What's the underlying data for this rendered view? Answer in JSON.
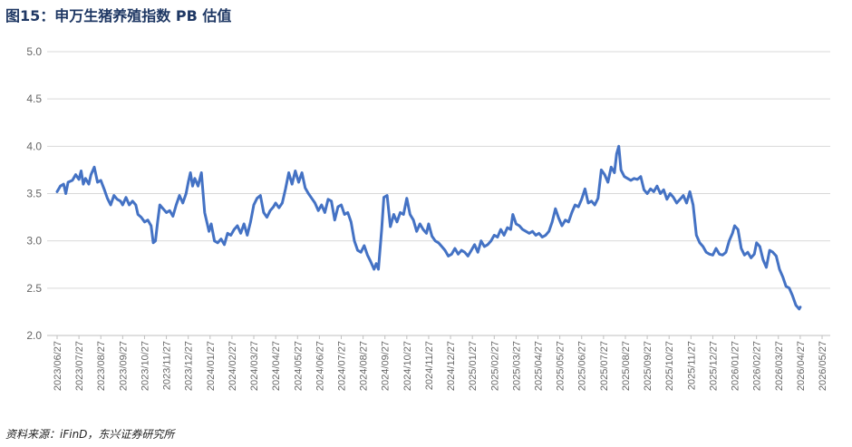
{
  "header": {
    "title": "图15：申万生猪养殖指数 PB 估值"
  },
  "footer": {
    "source": "资料来源：iFinD，东兴证券研究所"
  },
  "colors": {
    "line": "#4472c4",
    "grid": "#d9d9d9",
    "title": "#1f3864"
  },
  "chart_data": {
    "type": "line",
    "title": "图15：申万生猪养殖指数 PB 估值",
    "xlabel": "",
    "ylabel": "",
    "ylim": [
      2.0,
      5.0
    ],
    "yticks": [
      "5.0",
      "4.5",
      "4.0",
      "3.5",
      "3.0",
      "2.5",
      "2.0"
    ],
    "grid": true,
    "legend": "none",
    "categories": [
      "2023/06/27",
      "2023/07/27",
      "2023/08/27",
      "2023/09/27",
      "2023/10/27",
      "2023/11/27",
      "2023/12/27",
      "2024/01/27",
      "2024/02/27",
      "2024/03/27",
      "2024/04/27",
      "2024/05/27",
      "2024/06/27",
      "2024/07/27",
      "2024/08/27",
      "2024/09/27",
      "2024/10/27",
      "2024/11/27",
      "2024/12/27",
      "2025/01/27",
      "2025/02/27",
      "2025/03/27",
      "2025/04/27",
      "2025/05/27",
      "2025/06/27",
      "2025/07/27",
      "2025/08/27",
      "2025/09/27",
      "2025/10/27",
      "2025/11/27",
      "2025/12/27",
      "2026/01/27",
      "2026/02/27",
      "2026/03/27",
      "2026/04/27",
      "2026/05/27"
    ],
    "series": [
      {
        "values": [
          [
            0.0,
            3.52
          ],
          [
            0.15,
            3.58
          ],
          [
            0.3,
            3.6
          ],
          [
            0.4,
            3.5
          ],
          [
            0.5,
            3.62
          ],
          [
            0.7,
            3.64
          ],
          [
            0.85,
            3.7
          ],
          [
            1.0,
            3.65
          ],
          [
            1.1,
            3.74
          ],
          [
            1.2,
            3.6
          ],
          [
            1.3,
            3.66
          ],
          [
            1.45,
            3.6
          ],
          [
            1.55,
            3.7
          ],
          [
            1.7,
            3.78
          ],
          [
            1.85,
            3.62
          ],
          [
            2.0,
            3.64
          ],
          [
            2.15,
            3.55
          ],
          [
            2.3,
            3.45
          ],
          [
            2.45,
            3.38
          ],
          [
            2.6,
            3.48
          ],
          [
            2.75,
            3.44
          ],
          [
            2.9,
            3.42
          ],
          [
            3.0,
            3.38
          ],
          [
            3.15,
            3.46
          ],
          [
            3.3,
            3.38
          ],
          [
            3.45,
            3.42
          ],
          [
            3.6,
            3.38
          ],
          [
            3.7,
            3.28
          ],
          [
            3.85,
            3.25
          ],
          [
            4.0,
            3.2
          ],
          [
            4.15,
            3.22
          ],
          [
            4.3,
            3.16
          ],
          [
            4.4,
            2.98
          ],
          [
            4.5,
            3.0
          ],
          [
            4.6,
            3.2
          ],
          [
            4.7,
            3.38
          ],
          [
            4.85,
            3.34
          ],
          [
            5.0,
            3.3
          ],
          [
            5.15,
            3.32
          ],
          [
            5.3,
            3.26
          ],
          [
            5.45,
            3.38
          ],
          [
            5.6,
            3.48
          ],
          [
            5.75,
            3.4
          ],
          [
            5.9,
            3.5
          ],
          [
            6.0,
            3.62
          ],
          [
            6.1,
            3.72
          ],
          [
            6.2,
            3.58
          ],
          [
            6.3,
            3.66
          ],
          [
            6.45,
            3.58
          ],
          [
            6.6,
            3.72
          ],
          [
            6.75,
            3.3
          ],
          [
            6.85,
            3.2
          ],
          [
            6.95,
            3.1
          ],
          [
            7.05,
            3.18
          ],
          [
            7.2,
            3.0
          ],
          [
            7.35,
            2.98
          ],
          [
            7.5,
            3.02
          ],
          [
            7.65,
            2.96
          ],
          [
            7.8,
            3.08
          ],
          [
            7.95,
            3.06
          ],
          [
            8.1,
            3.12
          ],
          [
            8.25,
            3.16
          ],
          [
            8.4,
            3.08
          ],
          [
            8.55,
            3.18
          ],
          [
            8.7,
            3.06
          ],
          [
            8.85,
            3.2
          ],
          [
            9.0,
            3.38
          ],
          [
            9.15,
            3.45
          ],
          [
            9.3,
            3.48
          ],
          [
            9.45,
            3.3
          ],
          [
            9.6,
            3.25
          ],
          [
            9.75,
            3.32
          ],
          [
            9.9,
            3.36
          ],
          [
            10.0,
            3.4
          ],
          [
            10.15,
            3.35
          ],
          [
            10.3,
            3.4
          ],
          [
            10.45,
            3.55
          ],
          [
            10.6,
            3.72
          ],
          [
            10.75,
            3.6
          ],
          [
            10.9,
            3.74
          ],
          [
            11.05,
            3.62
          ],
          [
            11.2,
            3.72
          ],
          [
            11.35,
            3.56
          ],
          [
            11.5,
            3.5
          ],
          [
            11.65,
            3.45
          ],
          [
            11.8,
            3.4
          ],
          [
            11.95,
            3.32
          ],
          [
            12.1,
            3.38
          ],
          [
            12.25,
            3.3
          ],
          [
            12.4,
            3.44
          ],
          [
            12.55,
            3.42
          ],
          [
            12.7,
            3.22
          ],
          [
            12.85,
            3.36
          ],
          [
            13.0,
            3.38
          ],
          [
            13.15,
            3.28
          ],
          [
            13.3,
            3.3
          ],
          [
            13.45,
            3.2
          ],
          [
            13.6,
            3.0
          ],
          [
            13.75,
            2.9
          ],
          [
            13.9,
            2.88
          ],
          [
            14.05,
            2.95
          ],
          [
            14.2,
            2.85
          ],
          [
            14.35,
            2.78
          ],
          [
            14.5,
            2.7
          ],
          [
            14.6,
            2.76
          ],
          [
            14.7,
            2.7
          ],
          [
            14.85,
            3.12
          ],
          [
            14.95,
            3.46
          ],
          [
            15.1,
            3.48
          ],
          [
            15.25,
            3.15
          ],
          [
            15.4,
            3.28
          ],
          [
            15.55,
            3.2
          ],
          [
            15.7,
            3.3
          ],
          [
            15.85,
            3.28
          ],
          [
            16.0,
            3.45
          ],
          [
            16.15,
            3.28
          ],
          [
            16.3,
            3.22
          ],
          [
            16.45,
            3.1
          ],
          [
            16.6,
            3.18
          ],
          [
            16.75,
            3.12
          ],
          [
            16.9,
            3.08
          ],
          [
            17.0,
            3.18
          ],
          [
            17.15,
            3.05
          ],
          [
            17.3,
            3.0
          ],
          [
            17.45,
            2.98
          ],
          [
            17.6,
            2.94
          ],
          [
            17.75,
            2.9
          ],
          [
            17.9,
            2.84
          ],
          [
            18.05,
            2.86
          ],
          [
            18.2,
            2.92
          ],
          [
            18.35,
            2.86
          ],
          [
            18.5,
            2.9
          ],
          [
            18.65,
            2.88
          ],
          [
            18.8,
            2.84
          ],
          [
            18.95,
            2.9
          ],
          [
            19.1,
            2.96
          ],
          [
            19.25,
            2.88
          ],
          [
            19.4,
            3.0
          ],
          [
            19.55,
            2.94
          ],
          [
            19.7,
            2.96
          ],
          [
            19.85,
            3.0
          ],
          [
            20.0,
            3.06
          ],
          [
            20.15,
            3.04
          ],
          [
            20.3,
            3.12
          ],
          [
            20.45,
            3.06
          ],
          [
            20.6,
            3.14
          ],
          [
            20.75,
            3.12
          ],
          [
            20.85,
            3.28
          ],
          [
            21.0,
            3.18
          ],
          [
            21.15,
            3.16
          ],
          [
            21.3,
            3.12
          ],
          [
            21.45,
            3.1
          ],
          [
            21.6,
            3.08
          ],
          [
            21.75,
            3.1
          ],
          [
            21.9,
            3.06
          ],
          [
            22.05,
            3.08
          ],
          [
            22.2,
            3.04
          ],
          [
            22.35,
            3.06
          ],
          [
            22.5,
            3.1
          ],
          [
            22.65,
            3.2
          ],
          [
            22.8,
            3.34
          ],
          [
            22.95,
            3.24
          ],
          [
            23.1,
            3.16
          ],
          [
            23.25,
            3.22
          ],
          [
            23.4,
            3.2
          ],
          [
            23.55,
            3.3
          ],
          [
            23.7,
            3.38
          ],
          [
            23.85,
            3.36
          ],
          [
            24.0,
            3.44
          ],
          [
            24.15,
            3.55
          ],
          [
            24.3,
            3.4
          ],
          [
            24.45,
            3.42
          ],
          [
            24.6,
            3.38
          ],
          [
            24.75,
            3.45
          ],
          [
            24.9,
            3.75
          ],
          [
            25.05,
            3.7
          ],
          [
            25.2,
            3.62
          ],
          [
            25.35,
            3.78
          ],
          [
            25.5,
            3.72
          ],
          [
            25.6,
            3.92
          ],
          [
            25.7,
            4.0
          ],
          [
            25.8,
            3.75
          ],
          [
            25.95,
            3.68
          ],
          [
            26.1,
            3.66
          ],
          [
            26.25,
            3.64
          ],
          [
            26.4,
            3.66
          ],
          [
            26.55,
            3.65
          ],
          [
            26.7,
            3.68
          ],
          [
            26.85,
            3.54
          ],
          [
            27.0,
            3.5
          ],
          [
            27.15,
            3.55
          ],
          [
            27.3,
            3.52
          ],
          [
            27.45,
            3.58
          ],
          [
            27.6,
            3.5
          ],
          [
            27.75,
            3.54
          ],
          [
            27.9,
            3.44
          ],
          [
            28.05,
            3.5
          ],
          [
            28.2,
            3.46
          ],
          [
            28.35,
            3.4
          ],
          [
            28.5,
            3.44
          ],
          [
            28.65,
            3.48
          ],
          [
            28.8,
            3.4
          ],
          [
            28.95,
            3.52
          ],
          [
            29.1,
            3.38
          ],
          [
            29.25,
            3.06
          ],
          [
            29.4,
            2.98
          ],
          [
            29.55,
            2.94
          ],
          [
            29.7,
            2.88
          ],
          [
            29.85,
            2.86
          ],
          [
            30.0,
            2.85
          ],
          [
            30.15,
            2.92
          ],
          [
            30.3,
            2.86
          ],
          [
            30.45,
            2.85
          ],
          [
            30.6,
            2.88
          ],
          [
            30.75,
            3.0
          ],
          [
            30.9,
            3.08
          ],
          [
            31.0,
            3.16
          ],
          [
            31.15,
            3.12
          ],
          [
            31.3,
            2.92
          ],
          [
            31.45,
            2.85
          ],
          [
            31.6,
            2.88
          ],
          [
            31.75,
            2.82
          ],
          [
            31.9,
            2.86
          ],
          [
            32.0,
            2.98
          ],
          [
            32.15,
            2.94
          ],
          [
            32.3,
            2.8
          ],
          [
            32.45,
            2.72
          ],
          [
            32.6,
            2.9
          ],
          [
            32.75,
            2.88
          ],
          [
            32.9,
            2.84
          ],
          [
            33.05,
            2.7
          ],
          [
            33.2,
            2.62
          ],
          [
            33.35,
            2.52
          ],
          [
            33.5,
            2.5
          ],
          [
            33.65,
            2.42
          ],
          [
            33.8,
            2.32
          ],
          [
            33.95,
            2.28
          ],
          [
            34.0,
            2.3
          ]
        ]
      }
    ]
  }
}
